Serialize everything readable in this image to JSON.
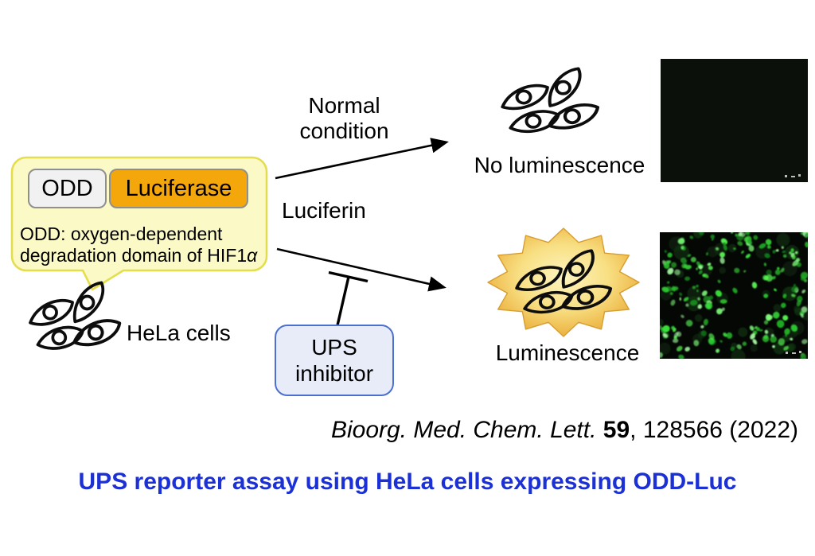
{
  "construct": {
    "odd_label": "ODD",
    "luciferase_label": "Luciferase",
    "caption_line1": "ODD: oxygen-dependent",
    "caption_line2_main": "degradation domain of HIF1",
    "caption_line2_alpha": "α"
  },
  "cells": {
    "hela_label": "HeLa cells"
  },
  "pathways": {
    "top_condition_line1": "Normal",
    "top_condition_line2": "condition",
    "substrate_label": "Luciferin",
    "inhibitor_line1": "UPS",
    "inhibitor_line2": "inhibitor"
  },
  "outcomes": {
    "no_luminescence_label": "No luminescence",
    "luminescence_label": "Luminescence"
  },
  "citation": {
    "journal_italic": "Bioorg. Med. Chem. Lett. ",
    "volume_bold": "59",
    "rest": ", 128566 (2022)"
  },
  "title": "UPS reporter assay using HeLa cells expressing ODD-Luc",
  "colors": {
    "title_blue": "#1b30d5",
    "bubble_fill": "#fbfac6",
    "bubble_border": "#e4de4e",
    "odd_fill": "#f1f1f1",
    "luciferase_orange": "#f4a70b",
    "ups_box_fill": "#e7ecf8",
    "ups_box_border": "#4c70d0",
    "starburst_gold": "#e5a338",
    "fluorescence_green": "#3ae03a",
    "dark_micrograph": "#0b100b"
  },
  "icons": {
    "speech_bubble": "speech-bubble",
    "cell_cluster": "cell-cluster-icon",
    "starburst": "luminescence-burst-icon",
    "arrow": "arrow-icon",
    "tbar": "inhibition-tbar-icon"
  }
}
